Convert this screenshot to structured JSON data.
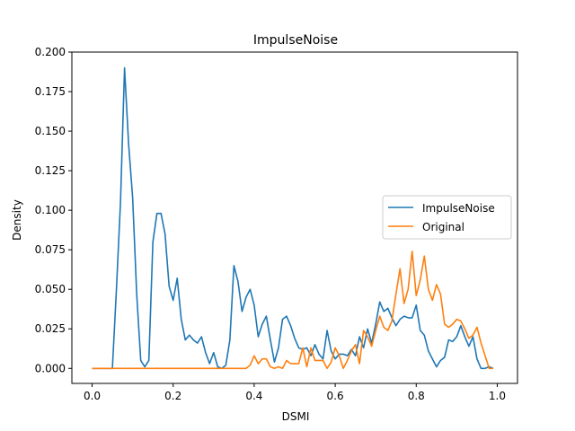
{
  "chart_data": {
    "type": "line",
    "title": "ImpulseNoise",
    "xlabel": "DSMI",
    "ylabel": "Density",
    "xlim": [
      -0.05,
      1.05
    ],
    "ylim": [
      -0.0095,
      0.2
    ],
    "xticks": [
      0.0,
      0.2,
      0.4,
      0.6,
      0.8,
      1.0
    ],
    "xtick_labels": [
      "0.0",
      "0.2",
      "0.4",
      "0.6",
      "0.8",
      "1.0"
    ],
    "yticks": [
      0.0,
      0.025,
      0.05,
      0.075,
      0.1,
      0.125,
      0.15,
      0.175,
      0.2
    ],
    "ytick_labels": [
      "0.000",
      "0.025",
      "0.050",
      "0.075",
      "0.100",
      "0.125",
      "0.150",
      "0.175",
      "0.200"
    ],
    "grid": false,
    "legend_position": "center-right",
    "series": [
      {
        "name": "ImpulseNoise",
        "color": "#1f77b4",
        "x": [
          0.0,
          0.01,
          0.02,
          0.03,
          0.04,
          0.05,
          0.06,
          0.07,
          0.08,
          0.09,
          0.1,
          0.11,
          0.12,
          0.13,
          0.14,
          0.15,
          0.16,
          0.17,
          0.18,
          0.19,
          0.2,
          0.21,
          0.22,
          0.23,
          0.24,
          0.25,
          0.26,
          0.27,
          0.28,
          0.29,
          0.3,
          0.31,
          0.32,
          0.33,
          0.34,
          0.35,
          0.36,
          0.37,
          0.38,
          0.39,
          0.4,
          0.41,
          0.42,
          0.43,
          0.44,
          0.45,
          0.46,
          0.47,
          0.48,
          0.49,
          0.5,
          0.51,
          0.52,
          0.53,
          0.54,
          0.55,
          0.56,
          0.57,
          0.58,
          0.59,
          0.6,
          0.61,
          0.62,
          0.63,
          0.64,
          0.65,
          0.66,
          0.67,
          0.68,
          0.69,
          0.7,
          0.71,
          0.72,
          0.73,
          0.74,
          0.75,
          0.76,
          0.77,
          0.78,
          0.79,
          0.8,
          0.81,
          0.82,
          0.83,
          0.84,
          0.85,
          0.86,
          0.87,
          0.88,
          0.89,
          0.9,
          0.91,
          0.92,
          0.93,
          0.94,
          0.95,
          0.96,
          0.97,
          0.98,
          0.99
        ],
        "values": [
          0.0,
          0.0,
          0.0,
          0.0,
          0.0,
          0.0,
          0.05,
          0.105,
          0.19,
          0.142,
          0.108,
          0.047,
          0.005,
          0.001,
          0.005,
          0.08,
          0.098,
          0.098,
          0.085,
          0.052,
          0.043,
          0.057,
          0.031,
          0.018,
          0.021,
          0.018,
          0.016,
          0.02,
          0.01,
          0.003,
          0.01,
          0.001,
          0.0,
          0.002,
          0.018,
          0.065,
          0.055,
          0.036,
          0.045,
          0.05,
          0.04,
          0.02,
          0.028,
          0.033,
          0.018,
          0.004,
          0.013,
          0.031,
          0.033,
          0.027,
          0.019,
          0.013,
          0.012,
          0.013,
          0.008,
          0.015,
          0.009,
          0.006,
          0.024,
          0.011,
          0.006,
          0.009,
          0.009,
          0.008,
          0.012,
          0.008,
          0.02,
          0.013,
          0.025,
          0.016,
          0.028,
          0.042,
          0.036,
          0.038,
          0.032,
          0.027,
          0.031,
          0.033,
          0.032,
          0.032,
          0.04,
          0.024,
          0.021,
          0.011,
          0.006,
          0.001,
          0.005,
          0.007,
          0.018,
          0.017,
          0.02,
          0.027,
          0.02,
          0.014,
          0.02,
          0.006,
          0.0,
          0.0,
          0.001,
          0.0
        ]
      },
      {
        "name": "Original",
        "color": "#ff7f0e",
        "x": [
          0.0,
          0.01,
          0.02,
          0.03,
          0.04,
          0.05,
          0.06,
          0.07,
          0.08,
          0.09,
          0.1,
          0.11,
          0.12,
          0.13,
          0.14,
          0.15,
          0.16,
          0.17,
          0.18,
          0.19,
          0.2,
          0.21,
          0.22,
          0.23,
          0.24,
          0.25,
          0.26,
          0.27,
          0.28,
          0.29,
          0.3,
          0.31,
          0.32,
          0.33,
          0.34,
          0.35,
          0.36,
          0.37,
          0.38,
          0.39,
          0.4,
          0.41,
          0.42,
          0.43,
          0.44,
          0.45,
          0.46,
          0.47,
          0.48,
          0.49,
          0.5,
          0.51,
          0.52,
          0.53,
          0.54,
          0.55,
          0.56,
          0.57,
          0.58,
          0.59,
          0.6,
          0.61,
          0.62,
          0.63,
          0.64,
          0.65,
          0.66,
          0.67,
          0.68,
          0.69,
          0.7,
          0.71,
          0.72,
          0.73,
          0.74,
          0.75,
          0.76,
          0.77,
          0.78,
          0.79,
          0.8,
          0.81,
          0.82,
          0.83,
          0.84,
          0.85,
          0.86,
          0.87,
          0.88,
          0.89,
          0.9,
          0.91,
          0.92,
          0.93,
          0.94,
          0.95,
          0.96,
          0.97,
          0.98,
          0.99
        ],
        "values": [
          0.0,
          0.0,
          0.0,
          0.0,
          0.0,
          0.0,
          0.0,
          0.0,
          0.0,
          0.0,
          0.0,
          0.0,
          0.0,
          0.0,
          0.0,
          0.0,
          0.0,
          0.0,
          0.0,
          0.0,
          0.0,
          0.0,
          0.0,
          0.0,
          0.0,
          0.0,
          0.0,
          0.0,
          0.0,
          0.0,
          0.0,
          0.0,
          0.0,
          0.0,
          0.0,
          0.0,
          0.0,
          0.0,
          0.0,
          0.002,
          0.008,
          0.003,
          0.006,
          0.006,
          0.001,
          0.0,
          0.001,
          0.0,
          0.005,
          0.003,
          0.003,
          0.003,
          0.013,
          0.001,
          0.013,
          0.005,
          0.005,
          0.005,
          0.0,
          0.004,
          0.013,
          0.008,
          0.0,
          0.005,
          0.011,
          0.015,
          0.003,
          0.024,
          0.02,
          0.014,
          0.024,
          0.033,
          0.026,
          0.024,
          0.03,
          0.047,
          0.063,
          0.041,
          0.05,
          0.074,
          0.046,
          0.056,
          0.071,
          0.05,
          0.043,
          0.053,
          0.047,
          0.028,
          0.026,
          0.028,
          0.031,
          0.03,
          0.025,
          0.019,
          0.021,
          0.026,
          0.016,
          0.008,
          0.0,
          0.0
        ]
      }
    ]
  }
}
